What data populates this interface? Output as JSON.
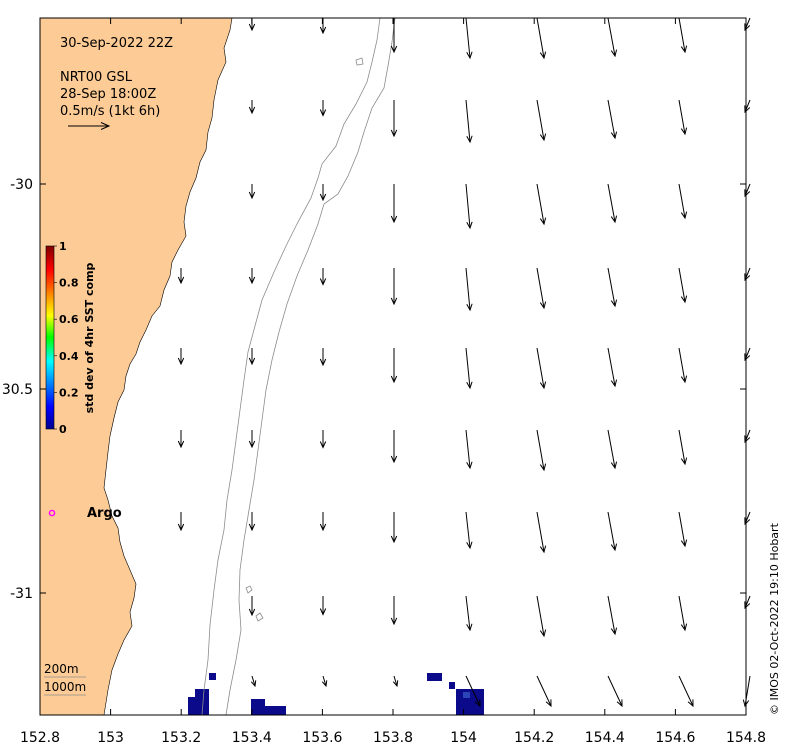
{
  "header": {
    "timestamp": "30-Sep-2022 22Z",
    "product": "NRT00 GSL",
    "sst_date": "28-Sep 18:00Z",
    "scale_label": "0.5m/s (1kt 6h)"
  },
  "colorbar": {
    "label": "std dev of 4hr SST comp",
    "ticks": [
      "1",
      "0.8",
      "0.6",
      "0.4",
      "0.2",
      "0"
    ]
  },
  "axes": {
    "x_ticks": [
      "152.8",
      "153",
      "153.2",
      "153.4",
      "153.6",
      "153.8",
      "154",
      "154.2",
      "154.4",
      "154.6",
      "154.8"
    ],
    "y_ticks": [
      "-30",
      "30.5",
      "-31"
    ],
    "xlim": [
      152.8,
      154.8
    ],
    "ylim": [
      -31.3,
      -29.58
    ]
  },
  "marker": {
    "label": "Argo",
    "color": "#ff00ff"
  },
  "depth_contours": {
    "label_200": "200m",
    "label_1000": "1000m"
  },
  "credit": "© IMOS 02-Oct-2022 19:10 Hobart",
  "colors": {
    "land": "#fdcb95",
    "sst_low": "#0a0a8a",
    "arrow": "#000000",
    "contour": "#8c8c8c"
  }
}
